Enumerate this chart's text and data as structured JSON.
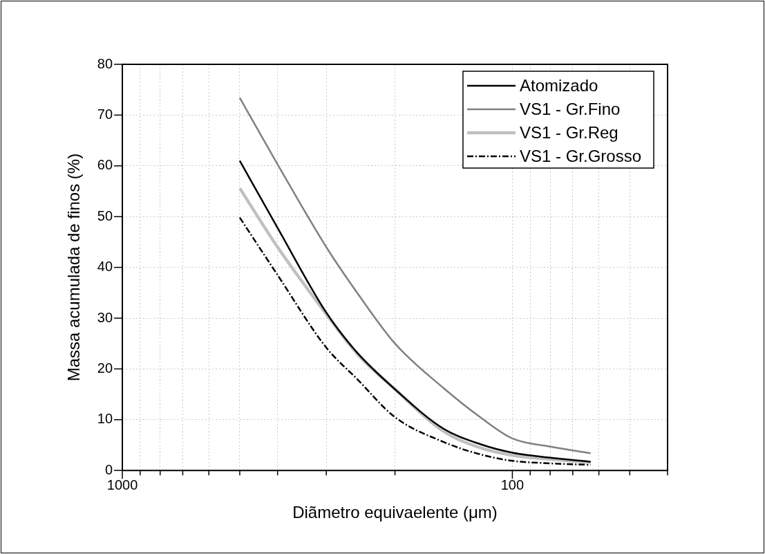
{
  "chart_data": {
    "type": "line",
    "xlabel": "Diãmetro equivaelente (μm)",
    "ylabel": "Massa acumulada de finos (%)",
    "log": "x",
    "xlim": [
      1000,
      40
    ],
    "xticks": [
      1000,
      {
        "value": 900,
        "label": null
      },
      {
        "value": 800,
        "label": null
      },
      {
        "value": 700,
        "label": null
      },
      {
        "value": 600,
        "label": null
      },
      {
        "value": 500,
        "label": null
      },
      {
        "value": 400,
        "label": null
      },
      {
        "value": 300,
        "label": null
      },
      {
        "value": 200,
        "label": null
      },
      100,
      {
        "value": 90,
        "label": null
      },
      {
        "value": 80,
        "label": null
      },
      {
        "value": 70,
        "label": null
      },
      {
        "value": 60,
        "label": null
      },
      {
        "value": 50,
        "label": null
      },
      {
        "value": 40,
        "label": null
      }
    ],
    "ylim": [
      0,
      80
    ],
    "yticks": [
      0,
      10,
      20,
      30,
      40,
      50,
      60,
      70,
      80
    ],
    "grid": true,
    "legend": "top right",
    "marker": "none",
    "x": [
      500,
      400,
      300,
      250,
      200,
      150,
      120,
      100,
      80,
      63
    ],
    "series": [
      {
        "name": "Atomizado",
        "color": "#000000",
        "line_style": "solid",
        "values": [
          61,
          47.8,
          31.1,
          23.2,
          16,
          8.2,
          5.1,
          3.5,
          2.5,
          1.7
        ]
      },
      {
        "name": "VS1 - Gr.Fino",
        "color": "#808080",
        "line_style": "solid",
        "values": [
          73.4,
          60.3,
          44,
          35,
          25,
          16.2,
          10.3,
          6.3,
          4.7,
          3.4
        ]
      },
      {
        "name": "VS1 - Gr.Reg",
        "color": "#c0c0c0",
        "line_style": "solid",
        "values": [
          55.6,
          44,
          30.8,
          23,
          16,
          7.7,
          4.4,
          3,
          2.2,
          1.6
        ]
      },
      {
        "name": "VS1 - Gr.Grosso",
        "color": "#000000",
        "line_style": "dashed",
        "values": [
          49.8,
          38.5,
          24.2,
          18,
          10.5,
          5.6,
          3.1,
          1.9,
          1.4,
          1.1
        ]
      }
    ]
  }
}
